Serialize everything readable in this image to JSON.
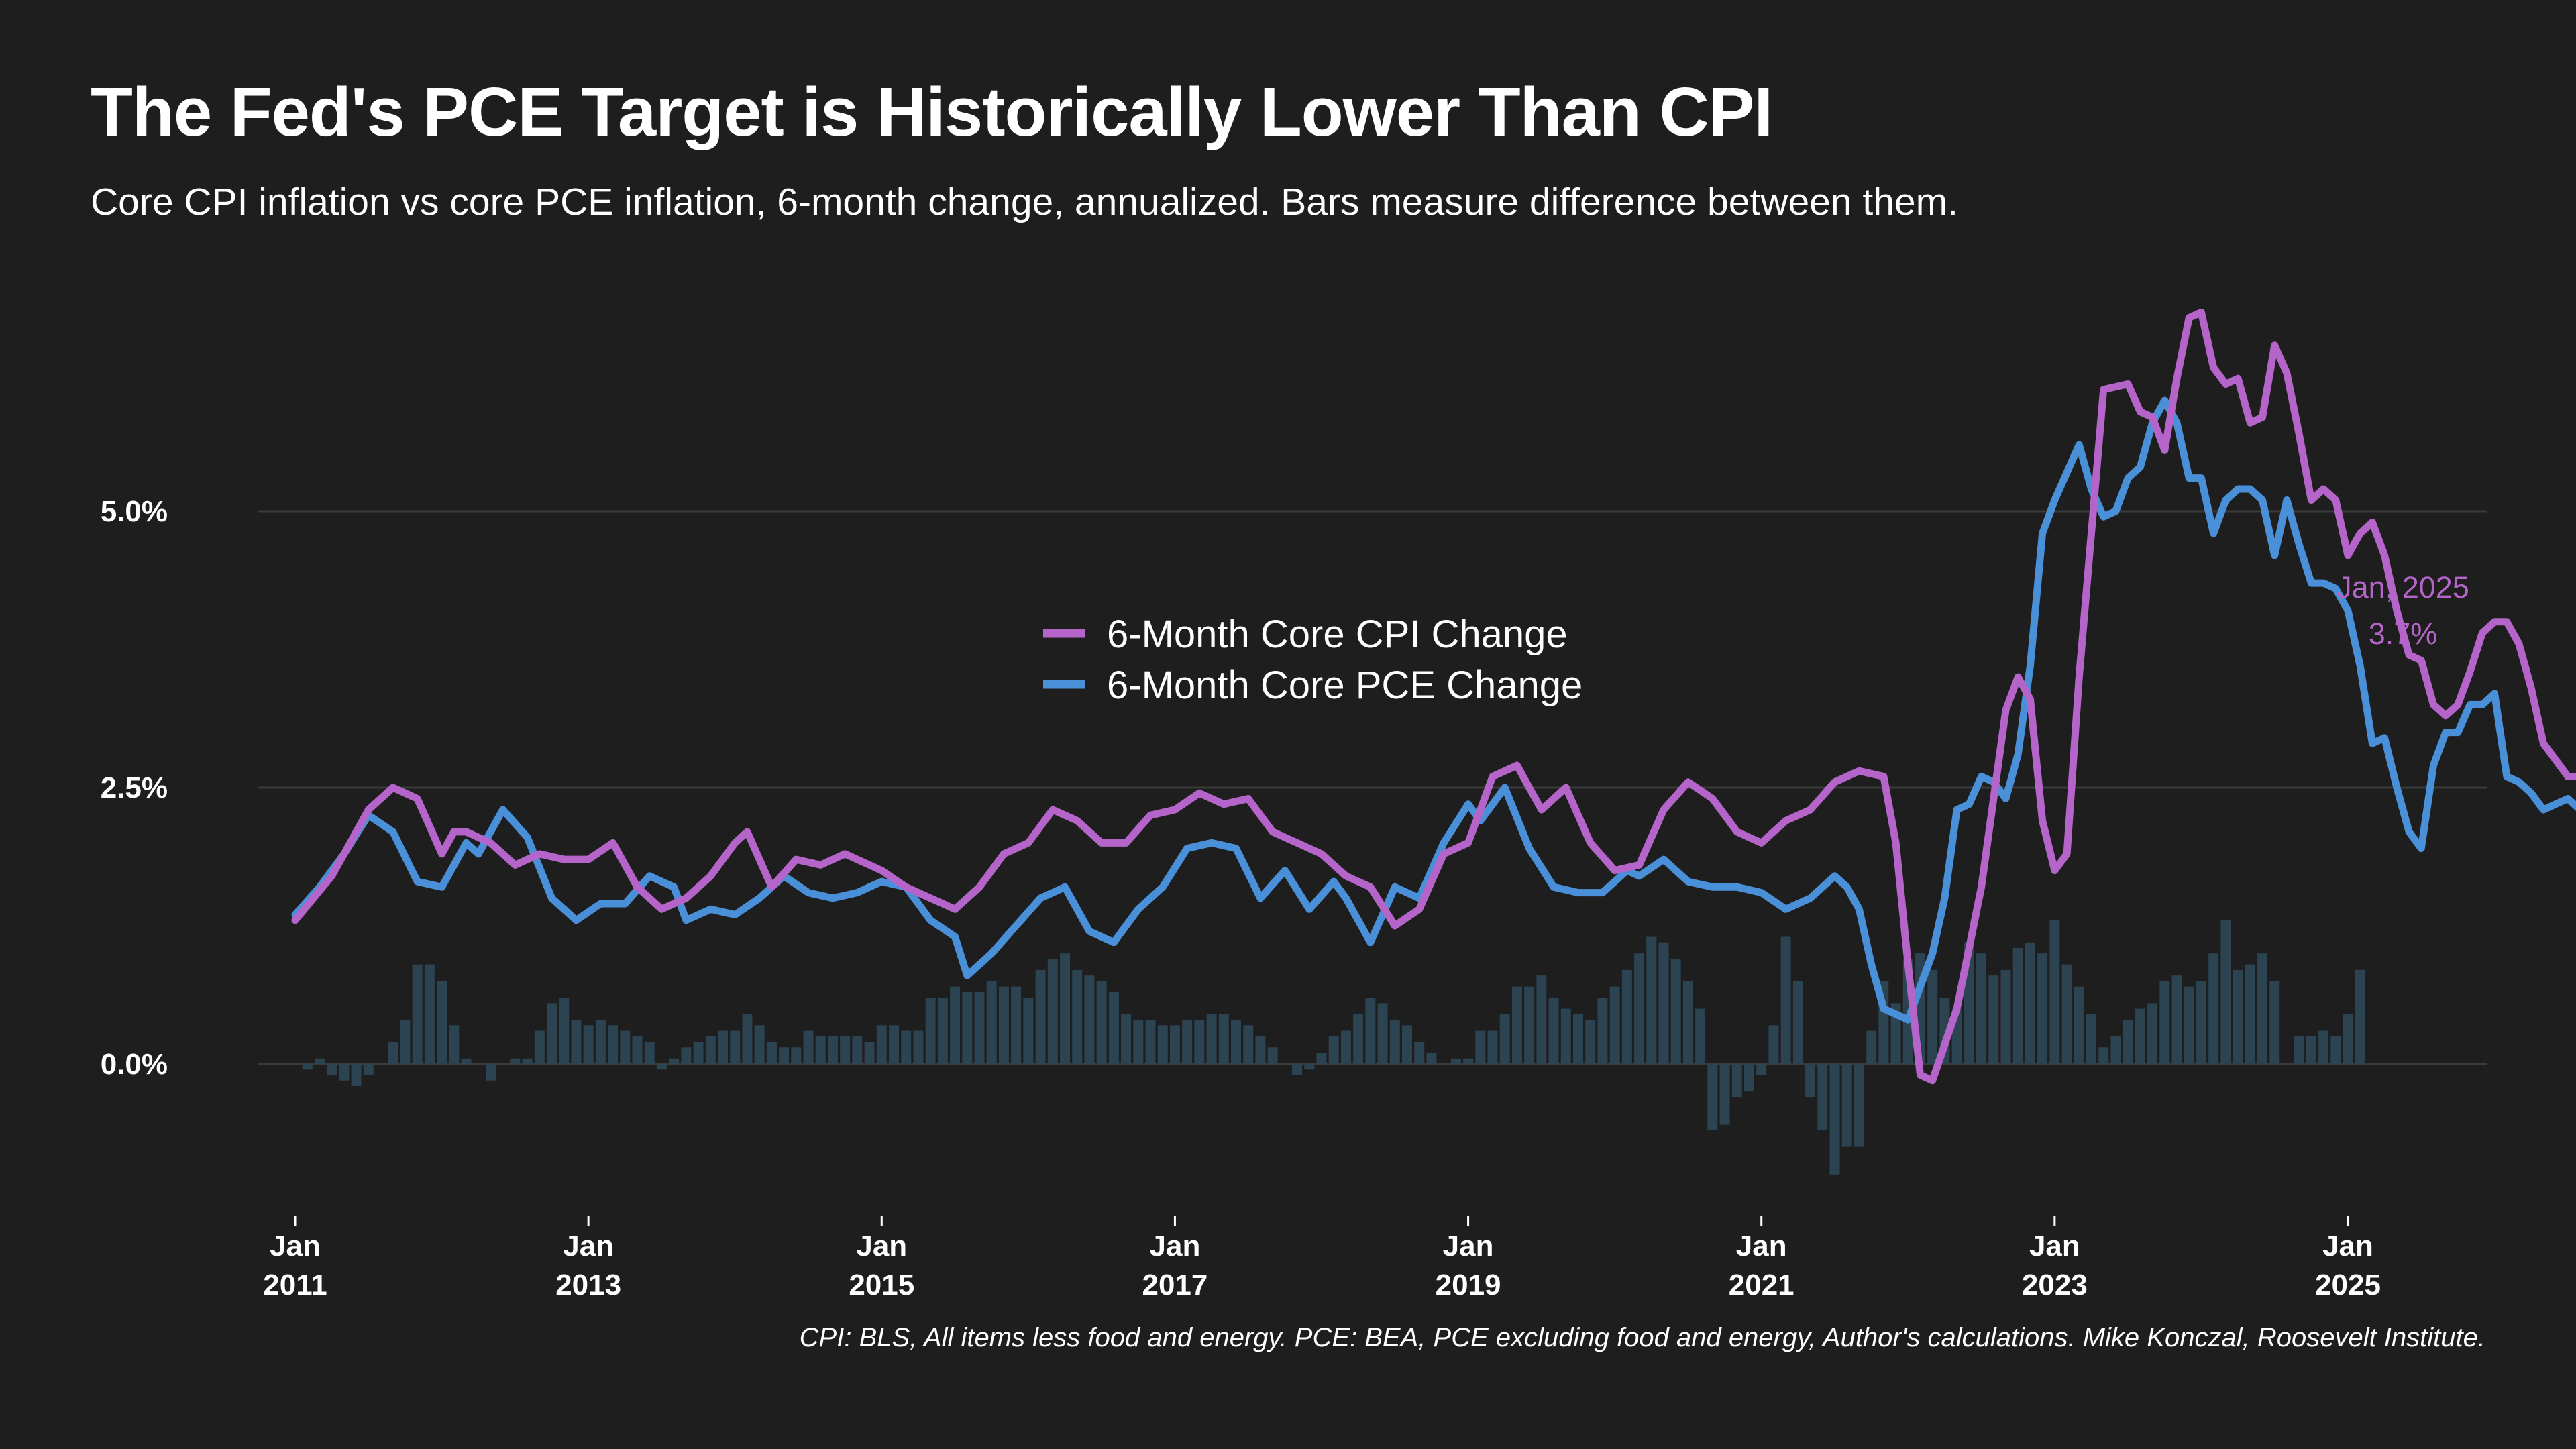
{
  "title": "The Fed's PCE Target is Historically Lower Than CPI",
  "subtitle": "Core CPI inflation vs core PCE inflation, 6-month change, annualized. Bars measure difference between them.",
  "source": "CPI: BLS, All items less food and energy. PCE: BEA, PCE excluding food and energy, Author's calculations. Mike Konczal, Roosevelt Institute.",
  "colors": {
    "background": "#1e1e1e",
    "cpi": "#b565c9",
    "pce": "#4a90d9",
    "bars": "#2c4452",
    "grid": "#3a3a3a"
  },
  "annotation": {
    "date_label": "Jan, 2025",
    "value_label": "3.7%"
  },
  "chart_data": {
    "type": "line",
    "x_unit": "months since Jan 2011",
    "x_start": "2011-01",
    "x_end": "2025-01",
    "ylim": [
      -1.2,
      7.0
    ],
    "grid": "horizontal",
    "legend_position": "center",
    "y_ticks": [
      {
        "value": 0.0,
        "label": "0.0%"
      },
      {
        "value": 2.5,
        "label": "2.5%"
      },
      {
        "value": 5.0,
        "label": "5.0%"
      }
    ],
    "x_ticks": [
      {
        "date": "2011-01",
        "month": "Jan",
        "year": "2011"
      },
      {
        "date": "2013-01",
        "month": "Jan",
        "year": "2013"
      },
      {
        "date": "2015-01",
        "month": "Jan",
        "year": "2015"
      },
      {
        "date": "2017-01",
        "month": "Jan",
        "year": "2017"
      },
      {
        "date": "2019-01",
        "month": "Jan",
        "year": "2019"
      },
      {
        "date": "2021-01",
        "month": "Jan",
        "year": "2021"
      },
      {
        "date": "2023-01",
        "month": "Jan",
        "year": "2023"
      },
      {
        "date": "2025-01",
        "month": "Jan",
        "year": "2025"
      }
    ],
    "series": [
      {
        "name": "6-Month Core CPI Change",
        "kind": "line",
        "color": "#b565c9",
        "anchors": [
          [
            0,
            1.3
          ],
          [
            3,
            1.7
          ],
          [
            6,
            2.3
          ],
          [
            8,
            2.5
          ],
          [
            10,
            2.4
          ],
          [
            12,
            1.9
          ],
          [
            13,
            2.1
          ],
          [
            14,
            2.1
          ],
          [
            16,
            2.0
          ],
          [
            18,
            1.8
          ],
          [
            20,
            1.9
          ],
          [
            22,
            1.85
          ],
          [
            24,
            1.85
          ],
          [
            26,
            2.0
          ],
          [
            28,
            1.6
          ],
          [
            30,
            1.4
          ],
          [
            32,
            1.5
          ],
          [
            34,
            1.7
          ],
          [
            36,
            2.0
          ],
          [
            37,
            2.1
          ],
          [
            39,
            1.6
          ],
          [
            41,
            1.85
          ],
          [
            43,
            1.8
          ],
          [
            45,
            1.9
          ],
          [
            48,
            1.75
          ],
          [
            50,
            1.6
          ],
          [
            52,
            1.5
          ],
          [
            54,
            1.4
          ],
          [
            56,
            1.6
          ],
          [
            58,
            1.9
          ],
          [
            60,
            2.0
          ],
          [
            62,
            2.3
          ],
          [
            64,
            2.2
          ],
          [
            66,
            2.0
          ],
          [
            68,
            2.0
          ],
          [
            70,
            2.25
          ],
          [
            72,
            2.3
          ],
          [
            74,
            2.45
          ],
          [
            76,
            2.35
          ],
          [
            78,
            2.4
          ],
          [
            80,
            2.1
          ],
          [
            82,
            2.0
          ],
          [
            84,
            1.9
          ],
          [
            86,
            1.7
          ],
          [
            88,
            1.6
          ],
          [
            90,
            1.25
          ],
          [
            92,
            1.4
          ],
          [
            94,
            1.9
          ],
          [
            96,
            2.0
          ],
          [
            98,
            2.6
          ],
          [
            100,
            2.7
          ],
          [
            102,
            2.3
          ],
          [
            104,
            2.5
          ],
          [
            106,
            2.0
          ],
          [
            108,
            1.75
          ],
          [
            110,
            1.8
          ],
          [
            112,
            2.3
          ],
          [
            114,
            2.55
          ],
          [
            116,
            2.4
          ],
          [
            118,
            2.1
          ],
          [
            120,
            2.0
          ],
          [
            122,
            2.2
          ],
          [
            124,
            2.3
          ],
          [
            126,
            2.55
          ],
          [
            128,
            2.65
          ],
          [
            130,
            2.6
          ],
          [
            131,
            2.0
          ],
          [
            132,
            0.9
          ],
          [
            133,
            -0.1
          ],
          [
            134,
            -0.15
          ],
          [
            136,
            0.5
          ],
          [
            138,
            1.6
          ],
          [
            140,
            3.2
          ],
          [
            141,
            3.5
          ],
          [
            142,
            3.3
          ],
          [
            143,
            2.2
          ],
          [
            144,
            1.75
          ],
          [
            145,
            1.9
          ],
          [
            146,
            3.5
          ],
          [
            147,
            4.8
          ],
          [
            148,
            6.1
          ],
          [
            150,
            6.15
          ],
          [
            151,
            5.9
          ],
          [
            152,
            5.85
          ],
          [
            153,
            5.55
          ],
          [
            154,
            6.2
          ],
          [
            155,
            6.75
          ],
          [
            156,
            6.8
          ],
          [
            157,
            6.3
          ],
          [
            158,
            6.15
          ],
          [
            159,
            6.2
          ],
          [
            160,
            5.8
          ],
          [
            161,
            5.85
          ],
          [
            162,
            6.5
          ],
          [
            163,
            6.25
          ],
          [
            164,
            5.7
          ],
          [
            165,
            5.1
          ],
          [
            166,
            5.2
          ],
          [
            167,
            5.1
          ],
          [
            168,
            4.6
          ],
          [
            169,
            4.8
          ],
          [
            170,
            4.9
          ],
          [
            171,
            4.6
          ],
          [
            172,
            4.1
          ],
          [
            173,
            3.7
          ],
          [
            174,
            3.65
          ],
          [
            175,
            3.25
          ],
          [
            176,
            3.15
          ],
          [
            177,
            3.25
          ],
          [
            178,
            3.55
          ],
          [
            179,
            3.9
          ],
          [
            180,
            4.0
          ],
          [
            181,
            4.0
          ],
          [
            182,
            3.8
          ],
          [
            183,
            3.4
          ],
          [
            184,
            2.9
          ],
          [
            185,
            2.75
          ],
          [
            186,
            2.6
          ],
          [
            187,
            2.6
          ],
          [
            188,
            2.9
          ],
          [
            189,
            3.2
          ],
          [
            190,
            3.7
          ]
        ]
      },
      {
        "name": "6-Month Core PCE Change",
        "kind": "line",
        "color": "#4a90d9",
        "anchors": [
          [
            0,
            1.35
          ],
          [
            2,
            1.6
          ],
          [
            4,
            1.9
          ],
          [
            6,
            2.25
          ],
          [
            8,
            2.1
          ],
          [
            10,
            1.65
          ],
          [
            12,
            1.6
          ],
          [
            14,
            2.0
          ],
          [
            15,
            1.9
          ],
          [
            17,
            2.3
          ],
          [
            19,
            2.05
          ],
          [
            21,
            1.5
          ],
          [
            23,
            1.3
          ],
          [
            25,
            1.45
          ],
          [
            27,
            1.45
          ],
          [
            29,
            1.7
          ],
          [
            31,
            1.6
          ],
          [
            32,
            1.3
          ],
          [
            34,
            1.4
          ],
          [
            36,
            1.35
          ],
          [
            38,
            1.5
          ],
          [
            40,
            1.7
          ],
          [
            42,
            1.55
          ],
          [
            44,
            1.5
          ],
          [
            46,
            1.55
          ],
          [
            48,
            1.65
          ],
          [
            50,
            1.6
          ],
          [
            52,
            1.3
          ],
          [
            54,
            1.15
          ],
          [
            55,
            0.8
          ],
          [
            57,
            1.0
          ],
          [
            59,
            1.25
          ],
          [
            61,
            1.5
          ],
          [
            63,
            1.6
          ],
          [
            65,
            1.2
          ],
          [
            67,
            1.1
          ],
          [
            69,
            1.4
          ],
          [
            71,
            1.6
          ],
          [
            73,
            1.95
          ],
          [
            75,
            2.0
          ],
          [
            77,
            1.95
          ],
          [
            79,
            1.5
          ],
          [
            81,
            1.75
          ],
          [
            83,
            1.4
          ],
          [
            85,
            1.65
          ],
          [
            86,
            1.5
          ],
          [
            88,
            1.1
          ],
          [
            90,
            1.6
          ],
          [
            92,
            1.5
          ],
          [
            94,
            2.0
          ],
          [
            96,
            2.35
          ],
          [
            97,
            2.2
          ],
          [
            99,
            2.5
          ],
          [
            101,
            1.95
          ],
          [
            103,
            1.6
          ],
          [
            105,
            1.55
          ],
          [
            107,
            1.55
          ],
          [
            109,
            1.75
          ],
          [
            110,
            1.7
          ],
          [
            112,
            1.85
          ],
          [
            114,
            1.65
          ],
          [
            116,
            1.6
          ],
          [
            118,
            1.6
          ],
          [
            120,
            1.55
          ],
          [
            122,
            1.4
          ],
          [
            124,
            1.5
          ],
          [
            126,
            1.7
          ],
          [
            127,
            1.6
          ],
          [
            128,
            1.4
          ],
          [
            129,
            0.9
          ],
          [
            130,
            0.5
          ],
          [
            131,
            0.45
          ],
          [
            132,
            0.4
          ],
          [
            133,
            0.7
          ],
          [
            134,
            1.0
          ],
          [
            135,
            1.5
          ],
          [
            136,
            2.3
          ],
          [
            137,
            2.35
          ],
          [
            138,
            2.6
          ],
          [
            139,
            2.55
          ],
          [
            140,
            2.4
          ],
          [
            141,
            2.8
          ],
          [
            142,
            3.6
          ],
          [
            143,
            4.8
          ],
          [
            144,
            5.1
          ],
          [
            146,
            5.6
          ],
          [
            147,
            5.2
          ],
          [
            148,
            4.95
          ],
          [
            149,
            5.0
          ],
          [
            150,
            5.3
          ],
          [
            151,
            5.4
          ],
          [
            152,
            5.8
          ],
          [
            153,
            6.0
          ],
          [
            154,
            5.8
          ],
          [
            155,
            5.3
          ],
          [
            156,
            5.3
          ],
          [
            157,
            4.8
          ],
          [
            158,
            5.1
          ],
          [
            159,
            5.2
          ],
          [
            160,
            5.2
          ],
          [
            161,
            5.1
          ],
          [
            162,
            4.6
          ],
          [
            163,
            5.1
          ],
          [
            164,
            4.7
          ],
          [
            165,
            4.35
          ],
          [
            166,
            4.35
          ],
          [
            167,
            4.3
          ],
          [
            168,
            4.1
          ],
          [
            169,
            3.6
          ],
          [
            170,
            2.9
          ],
          [
            171,
            2.95
          ],
          [
            172,
            2.5
          ],
          [
            173,
            2.1
          ],
          [
            174,
            1.95
          ],
          [
            175,
            2.7
          ],
          [
            176,
            3.0
          ],
          [
            177,
            3.0
          ],
          [
            178,
            3.25
          ],
          [
            179,
            3.25
          ],
          [
            180,
            3.35
          ],
          [
            181,
            2.6
          ],
          [
            182,
            2.55
          ],
          [
            183,
            2.45
          ],
          [
            184,
            2.3
          ],
          [
            185,
            2.35
          ],
          [
            186,
            2.4
          ],
          [
            187,
            2.3
          ]
        ]
      },
      {
        "name": "Difference",
        "kind": "bar",
        "color": "#2c4452",
        "x_start": 0,
        "values": [
          0.0,
          -0.05,
          0.05,
          -0.1,
          -0.15,
          -0.2,
          -0.1,
          0.0,
          0.2,
          0.4,
          0.9,
          0.9,
          0.75,
          0.35,
          0.05,
          0.0,
          -0.15,
          0.0,
          0.05,
          0.05,
          0.3,
          0.55,
          0.6,
          0.4,
          0.35,
          0.4,
          0.35,
          0.3,
          0.25,
          0.2,
          -0.05,
          0.05,
          0.15,
          0.2,
          0.25,
          0.3,
          0.3,
          0.45,
          0.35,
          0.2,
          0.15,
          0.15,
          0.3,
          0.25,
          0.25,
          0.25,
          0.25,
          0.2,
          0.35,
          0.35,
          0.3,
          0.3,
          0.6,
          0.6,
          0.7,
          0.65,
          0.65,
          0.75,
          0.7,
          0.7,
          0.6,
          0.85,
          0.95,
          1.0,
          0.85,
          0.8,
          0.75,
          0.65,
          0.45,
          0.4,
          0.4,
          0.35,
          0.35,
          0.4,
          0.4,
          0.45,
          0.45,
          0.4,
          0.35,
          0.25,
          0.15,
          0.0,
          -0.1,
          -0.05,
          0.1,
          0.25,
          0.3,
          0.45,
          0.6,
          0.55,
          0.4,
          0.35,
          0.2,
          0.1,
          0.0,
          0.05,
          0.05,
          0.3,
          0.3,
          0.45,
          0.7,
          0.7,
          0.8,
          0.6,
          0.5,
          0.45,
          0.4,
          0.6,
          0.7,
          0.85,
          1.0,
          1.15,
          1.1,
          0.95,
          0.75,
          0.5,
          -0.6,
          -0.55,
          -0.3,
          -0.25,
          -0.1,
          0.35,
          1.15,
          0.75,
          -0.3,
          -0.6,
          -1.0,
          -0.75,
          -0.75,
          0.3,
          0.75,
          0.55,
          0.95,
          1.0,
          0.85,
          0.6,
          0.5,
          1.1,
          1.0,
          0.8,
          0.85,
          1.05,
          1.1,
          1.0,
          1.3,
          0.9,
          0.7,
          0.45,
          0.15,
          0.25,
          0.4,
          0.5,
          0.55,
          0.75,
          0.8,
          0.7,
          0.75,
          1.0,
          1.3,
          0.85,
          0.9,
          1.0,
          0.75,
          0.0,
          0.25,
          0.25,
          0.3,
          0.25,
          0.45,
          0.85,
          0.0,
          0.0,
          0.0
        ]
      }
    ]
  }
}
